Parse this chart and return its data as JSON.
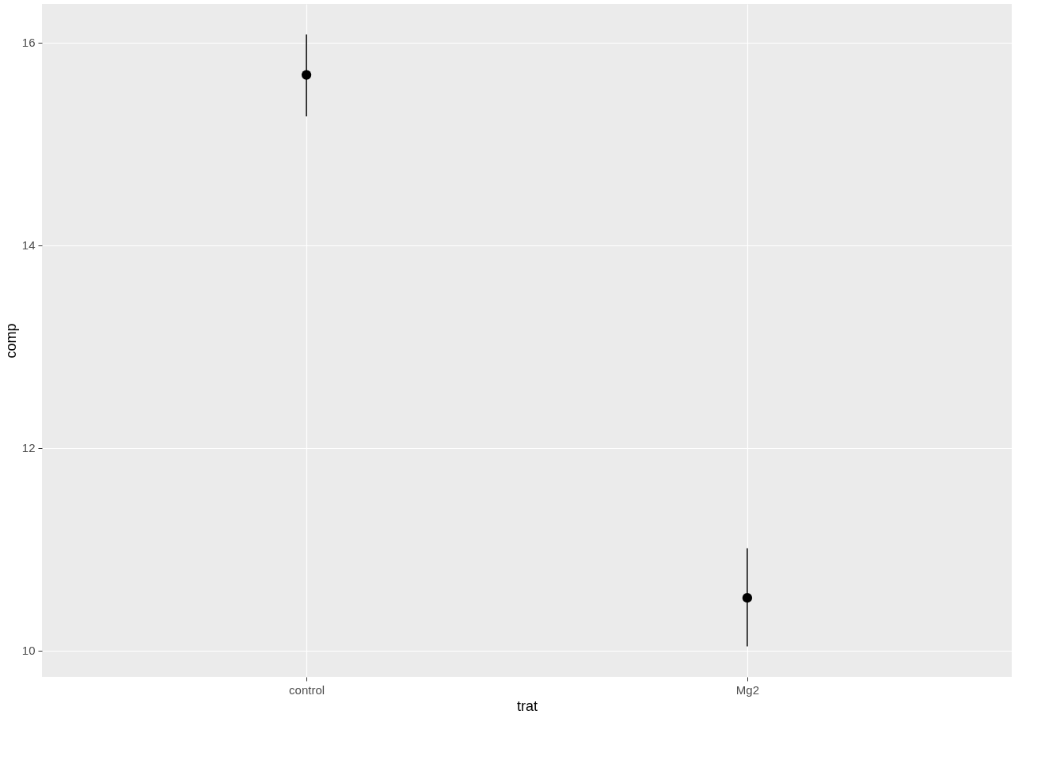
{
  "chart_data": {
    "type": "scatter",
    "xlabel": "trat",
    "ylabel": "comp",
    "categories": [
      "control",
      "Mg2"
    ],
    "series": [
      {
        "color": "#000000",
        "values": [
          15.68,
          10.52
        ],
        "errors": [
          [
            15.27,
            16.08
          ],
          [
            10.04,
            11.01
          ]
        ]
      }
    ],
    "ylim": [
      9.74,
      16.38
    ],
    "yticks": [
      10,
      12,
      14,
      16
    ],
    "grid": true,
    "marker": "circle"
  }
}
